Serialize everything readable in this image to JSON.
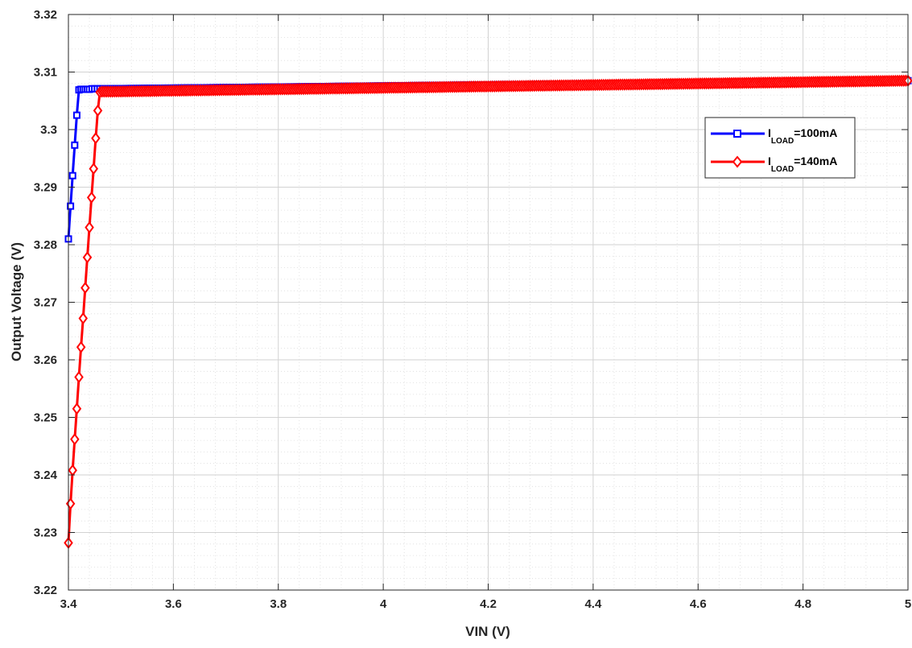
{
  "chart_data": {
    "type": "line",
    "title": "",
    "xlabel": "VIN (V)",
    "ylabel": "Output Voltage (V)",
    "xlim": [
      3.4,
      5.0
    ],
    "ylim": [
      3.22,
      3.32
    ],
    "xticks": [
      3.4,
      3.6,
      3.8,
      4.0,
      4.2,
      4.4,
      4.6,
      4.8,
      5.0
    ],
    "xtick_labels": [
      "3.4",
      "3.6",
      "3.8",
      "4",
      "4.2",
      "4.4",
      "4.6",
      "4.8",
      "5"
    ],
    "yticks": [
      3.22,
      3.23,
      3.24,
      3.25,
      3.26,
      3.27,
      3.28,
      3.29,
      3.3,
      3.31,
      3.32
    ],
    "ytick_labels": [
      "3.22",
      "3.23",
      "3.24",
      "3.25",
      "3.26",
      "3.27",
      "3.28",
      "3.29",
      "3.3",
      "3.31",
      "3.32"
    ],
    "grid": true,
    "minor_grid": true,
    "legend_position": "upper-right",
    "series": [
      {
        "name": "I_LOAD=100mA",
        "legend": {
          "main": "I",
          "sub": "LOAD",
          "rest": "=100mA"
        },
        "color": "#0000ff",
        "marker": "square",
        "x": [
          3.4,
          3.404,
          3.408,
          3.412,
          3.416,
          3.42,
          3.424,
          3.428,
          3.432,
          3.436,
          3.44,
          3.445,
          3.45,
          3.455,
          3.46,
          3.465,
          3.47
        ],
        "y": [
          3.281,
          3.2867,
          3.292,
          3.2973,
          3.3025,
          3.3069,
          3.307,
          3.307,
          3.307,
          3.307,
          3.307,
          3.3071,
          3.3071,
          3.3071,
          3.3071,
          3.3071,
          3.3071
        ],
        "tail": {
          "x_start": 3.47,
          "x_end": 5.0,
          "step": 0.005,
          "y_start": 3.3071,
          "y_end": 3.3085
        }
      },
      {
        "name": "I_LOAD=140mA",
        "legend": {
          "main": "I",
          "sub": "LOAD",
          "rest": "=140mA"
        },
        "color": "#ff0000",
        "marker": "diamond",
        "x": [
          3.4,
          3.404,
          3.408,
          3.412,
          3.416,
          3.42,
          3.424,
          3.428,
          3.432,
          3.436,
          3.44,
          3.444,
          3.448,
          3.452,
          3.456,
          3.46,
          3.464,
          3.468,
          3.472,
          3.476,
          3.48
        ],
        "y": [
          3.2282,
          3.235,
          3.2408,
          3.2462,
          3.2515,
          3.257,
          3.2622,
          3.2672,
          3.2725,
          3.2778,
          3.283,
          3.2882,
          3.2932,
          3.2985,
          3.3033,
          3.3065,
          3.3066,
          3.3066,
          3.3066,
          3.3066,
          3.3066
        ],
        "tail": {
          "x_start": 3.48,
          "x_end": 5.0,
          "step": 0.004,
          "y_start": 3.3066,
          "y_end": 3.3085
        }
      }
    ]
  }
}
